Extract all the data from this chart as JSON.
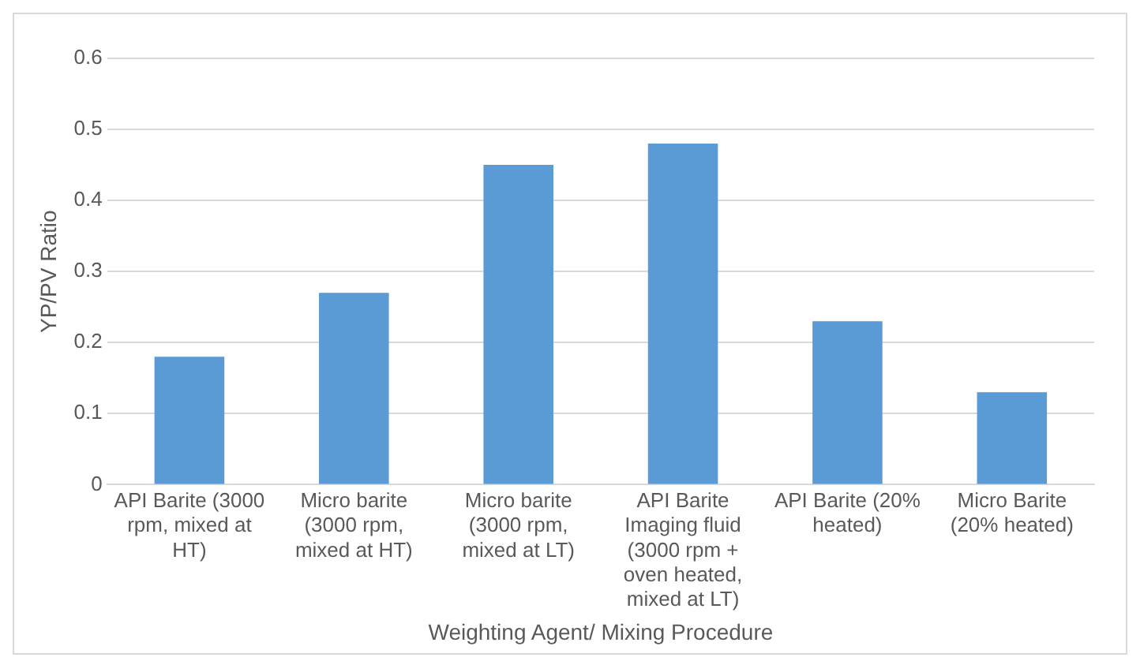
{
  "chart_data": {
    "type": "bar",
    "categories": [
      "API Barite (3000 rpm, mixed at HT)",
      "Micro barite (3000 rpm, mixed at HT)",
      "Micro barite (3000 rpm, mixed at LT)",
      "API Barite Imaging fluid (3000 rpm + oven heated, mixed at LT)",
      "API Barite (20% heated)",
      "Micro Barite (20% heated)"
    ],
    "values": [
      0.18,
      0.27,
      0.45,
      0.48,
      0.23,
      0.13
    ],
    "color": "#5b9bd5",
    "xlabel": "Weighting Agent/ Mixing Procedure",
    "ylabel": "YP/PV Ratio",
    "ylim": [
      0,
      0.6
    ],
    "yticks": [
      0,
      0.1,
      0.2,
      0.3,
      0.4,
      0.5,
      0.6
    ],
    "grid": "y",
    "legend": false
  }
}
